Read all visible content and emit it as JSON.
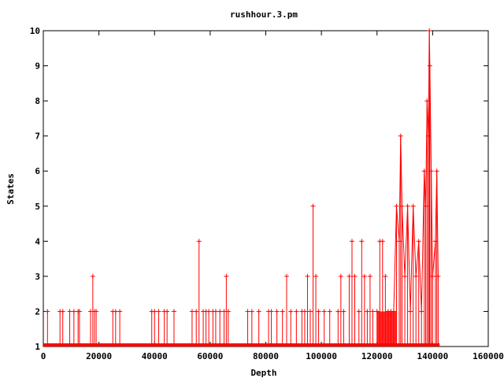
{
  "chart_data": {
    "type": "line",
    "title": "rushhour.3.pm",
    "xlabel": "Depth",
    "ylabel": "States",
    "xlim": [
      0,
      160000
    ],
    "ylim": [
      1,
      10
    ],
    "x_ticks": [
      0,
      20000,
      40000,
      60000,
      80000,
      100000,
      120000,
      140000,
      160000
    ],
    "y_ticks": [
      1,
      2,
      3,
      4,
      5,
      6,
      7,
      8,
      9,
      10
    ],
    "grid": false,
    "legend": "none",
    "color": "#ff0000",
    "baseline_end": 142500,
    "points": [
      [
        1500,
        2
      ],
      [
        6000,
        2
      ],
      [
        7000,
        2
      ],
      [
        9500,
        2
      ],
      [
        11000,
        2
      ],
      [
        12500,
        2
      ],
      [
        13000,
        2
      ],
      [
        17000,
        2
      ],
      [
        17800,
        3
      ],
      [
        18400,
        2
      ],
      [
        19000,
        2
      ],
      [
        25000,
        2
      ],
      [
        26000,
        2
      ],
      [
        27500,
        2
      ],
      [
        39000,
        2
      ],
      [
        40000,
        2
      ],
      [
        41500,
        2
      ],
      [
        43500,
        2
      ],
      [
        44500,
        2
      ],
      [
        47000,
        2
      ],
      [
        53500,
        2
      ],
      [
        55000,
        2
      ],
      [
        56000,
        4
      ],
      [
        57500,
        2
      ],
      [
        58500,
        2
      ],
      [
        59500,
        2
      ],
      [
        61000,
        2
      ],
      [
        62000,
        2
      ],
      [
        63500,
        2
      ],
      [
        65000,
        2
      ],
      [
        65800,
        3
      ],
      [
        66500,
        2
      ],
      [
        73500,
        2
      ],
      [
        75000,
        2
      ],
      [
        77500,
        2
      ],
      [
        81000,
        2
      ],
      [
        82000,
        2
      ],
      [
        84000,
        2
      ],
      [
        86000,
        2
      ],
      [
        87500,
        3
      ],
      [
        89000,
        2
      ],
      [
        91000,
        2
      ],
      [
        93000,
        2
      ],
      [
        94000,
        2
      ],
      [
        95000,
        3
      ],
      [
        96000,
        2
      ],
      [
        97000,
        5
      ],
      [
        98000,
        3
      ],
      [
        99000,
        2
      ],
      [
        101000,
        2
      ],
      [
        103000,
        2
      ],
      [
        106000,
        2
      ],
      [
        107000,
        3
      ],
      [
        108000,
        2
      ],
      [
        110000,
        3
      ],
      [
        111000,
        4
      ],
      [
        112000,
        3
      ],
      [
        113500,
        2
      ],
      [
        114500,
        4
      ],
      [
        115500,
        3
      ],
      [
        116500,
        2
      ],
      [
        117500,
        3
      ],
      [
        118500,
        2
      ],
      [
        120000,
        2
      ],
      [
        121000,
        4
      ],
      [
        122000,
        4
      ],
      [
        123000,
        3
      ],
      [
        124000,
        2
      ],
      [
        125000,
        2
      ],
      [
        126000,
        2
      ],
      [
        127000,
        5
      ],
      [
        128000,
        4
      ],
      [
        128500,
        7
      ],
      [
        129000,
        5
      ],
      [
        130000,
        3
      ],
      [
        131000,
        5
      ],
      [
        132000,
        2
      ],
      [
        133000,
        5
      ],
      [
        134000,
        3
      ],
      [
        135000,
        4
      ],
      [
        136000,
        2
      ],
      [
        137000,
        6
      ],
      [
        137500,
        5
      ],
      [
        138000,
        8
      ],
      [
        138500,
        7
      ],
      [
        138800,
        10
      ],
      [
        139000,
        9
      ],
      [
        139500,
        6
      ],
      [
        140000,
        3
      ],
      [
        141000,
        4
      ],
      [
        141500,
        6
      ],
      [
        142000,
        3
      ]
    ]
  }
}
